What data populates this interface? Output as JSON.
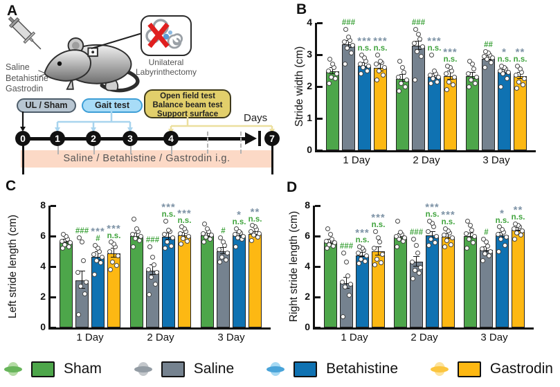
{
  "panelA": {
    "letter": "A",
    "drugs": "Saline\nBetahistine\nGastrodin",
    "inset_label": "Unilateral\nLabyrinthectomy",
    "box_ul": "UL / Sham",
    "box_gait": "Gait test",
    "box_tests": "Open field test\nBalance beam test\nSupport surface",
    "days": "Days",
    "ticks": [
      "0",
      "1",
      "2",
      "3",
      "4",
      "7"
    ],
    "band": "Saline / Betahistine / Gastrodin  i.g."
  },
  "legend": {
    "items": [
      {
        "label": "Sham",
        "color": "#4da64a",
        "light": "#b4dba4",
        "mid": "#68b55b"
      },
      {
        "label": "Saline",
        "color": "#75828f",
        "light": "#c3c7cb",
        "mid": "#939ca4"
      },
      {
        "label": "Betahistine",
        "color": "#0f72b2",
        "light": "#a6d9f3",
        "mid": "#4aa4d9"
      },
      {
        "label": "Gastrodin",
        "color": "#fdb813",
        "light": "#fde39c",
        "mid": "#fbc53e"
      }
    ]
  },
  "chart_data": [
    {
      "panel": "B",
      "type": "bar",
      "ylabel": "Stride width (cm)",
      "ymax": 4,
      "yticks": [
        0,
        1,
        2,
        3,
        4
      ],
      "categories": [
        "1 Day",
        "2 Day",
        "3 Day"
      ],
      "series": [
        "Sham",
        "Saline",
        "Betahistine",
        "Gastrodin"
      ],
      "groups": [
        {
          "bars": [
            {
              "value": 2.48,
              "err": 0.08,
              "points": [
                2.1,
                2.25,
                2.3,
                2.4,
                2.5,
                2.6,
                2.7,
                2.85
              ]
            },
            {
              "value": 3.32,
              "err": 0.1,
              "points": [
                2.7,
                3.05,
                3.2,
                3.3,
                3.4,
                3.45,
                3.55,
                3.8
              ],
              "sig_green": "###"
            },
            {
              "value": 2.65,
              "err": 0.07,
              "points": [
                2.4,
                2.5,
                2.6,
                2.65,
                2.7,
                2.8,
                2.9,
                3.0
              ],
              "sig_gray": "***",
              "sig_green": "n.s."
            },
            {
              "value": 2.58,
              "err": 0.1,
              "points": [
                2.2,
                2.35,
                2.5,
                2.6,
                2.7,
                2.75,
                2.8,
                3.0
              ],
              "sig_gray": "***",
              "sig_green": "n.s."
            }
          ]
        },
        {
          "bars": [
            {
              "value": 2.25,
              "err": 0.09,
              "points": [
                1.85,
                2.0,
                2.1,
                2.2,
                2.3,
                2.45,
                2.6,
                2.8
              ]
            },
            {
              "value": 3.28,
              "err": 0.12,
              "points": [
                2.2,
                2.95,
                3.1,
                3.25,
                3.35,
                3.5,
                3.65,
                3.8
              ],
              "sig_green": "###"
            },
            {
              "value": 2.3,
              "err": 0.06,
              "points": [
                2.1,
                2.15,
                2.25,
                2.3,
                2.35,
                2.4,
                2.5,
                3.0
              ],
              "sig_gray": "***",
              "sig_green": "n.s."
            },
            {
              "value": 2.33,
              "err": 0.12,
              "points": [
                1.9,
                2.05,
                2.15,
                2.3,
                2.4,
                2.5,
                2.6,
                2.65
              ],
              "sig_gray": "***",
              "sig_green": "n.s."
            }
          ]
        },
        {
          "bars": [
            {
              "value": 2.33,
              "err": 0.09,
              "points": [
                2.0,
                2.1,
                2.2,
                2.3,
                2.4,
                2.55,
                2.7,
                2.8
              ]
            },
            {
              "value": 2.88,
              "err": 0.06,
              "points": [
                2.6,
                2.75,
                2.85,
                2.9,
                2.95,
                3.0,
                3.05,
                3.1
              ],
              "sig_green": "##"
            },
            {
              "value": 2.45,
              "err": 0.06,
              "points": [
                2.0,
                2.25,
                2.4,
                2.45,
                2.5,
                2.55,
                2.6,
                2.65
              ],
              "sig_gray": "*",
              "sig_green": "n.s."
            },
            {
              "value": 2.32,
              "err": 0.09,
              "points": [
                1.95,
                2.05,
                2.15,
                2.25,
                2.35,
                2.45,
                2.55,
                2.65
              ],
              "sig_gray": "**",
              "sig_green": "n.s."
            }
          ]
        }
      ]
    },
    {
      "panel": "C",
      "type": "bar",
      "ylabel": "Left stride length (cm)",
      "ymax": 8,
      "yticks": [
        0,
        2,
        4,
        6,
        8
      ],
      "categories": [
        "1 Day",
        "2 Day",
        "3 Day"
      ],
      "series": [
        "Sham",
        "Saline",
        "Betahistine",
        "Gastrodin"
      ],
      "groups": [
        {
          "bars": [
            {
              "value": 5.62,
              "err": 0.12,
              "points": [
                5.2,
                5.3,
                5.45,
                5.55,
                5.65,
                5.8,
                6.0,
                6.1
              ]
            },
            {
              "value": 3.1,
              "err": 0.55,
              "points": [
                0.85,
                2.2,
                2.7,
                3.0,
                3.6,
                4.4,
                5.6,
                5.9
              ],
              "sig_green": "###"
            },
            {
              "value": 4.65,
              "err": 0.25,
              "points": [
                3.5,
                4.25,
                4.4,
                4.6,
                4.8,
                5.0,
                5.2,
                5.4
              ],
              "sig_gray": "***",
              "sig_green": "#"
            },
            {
              "value": 4.85,
              "err": 0.28,
              "points": [
                3.8,
                4.05,
                4.3,
                4.7,
                5.0,
                5.3,
                5.5,
                5.6
              ],
              "sig_gray": "***",
              "sig_green": "n.s."
            }
          ]
        },
        {
          "bars": [
            {
              "value": 6.0,
              "err": 0.15,
              "points": [
                5.3,
                5.7,
                5.85,
                6.0,
                6.1,
                6.3,
                6.5,
                7.1
              ]
            },
            {
              "value": 3.75,
              "err": 0.3,
              "points": [
                2.15,
                2.85,
                3.3,
                3.6,
                3.8,
                4.1,
                4.6,
                5.3
              ],
              "sig_green": "###"
            },
            {
              "value": 5.95,
              "err": 0.18,
              "points": [
                5.2,
                5.35,
                5.6,
                5.9,
                6.1,
                6.3,
                6.4,
                7.0
              ],
              "sig_gray": "***",
              "sig_green": "n.s."
            },
            {
              "value": 6.05,
              "err": 0.15,
              "points": [
                5.5,
                5.65,
                5.85,
                6.0,
                6.15,
                6.3,
                6.5,
                6.6
              ],
              "sig_gray": "***",
              "sig_green": "n.s."
            }
          ]
        },
        {
          "bars": [
            {
              "value": 6.05,
              "err": 0.1,
              "points": [
                5.6,
                5.8,
                5.95,
                6.05,
                6.15,
                6.3,
                6.5,
                6.8
              ]
            },
            {
              "value": 5.0,
              "err": 0.2,
              "points": [
                4.3,
                4.45,
                4.6,
                4.9,
                5.1,
                5.4,
                5.6,
                5.9
              ],
              "sig_green": "#"
            },
            {
              "value": 6.05,
              "err": 0.12,
              "points": [
                5.3,
                5.8,
                5.9,
                6.0,
                6.1,
                6.2,
                6.3,
                6.5
              ],
              "sig_gray": "*",
              "sig_green": "n.s."
            },
            {
              "value": 6.15,
              "err": 0.1,
              "points": [
                5.7,
                5.95,
                6.05,
                6.15,
                6.3,
                6.45,
                6.6,
                6.7
              ],
              "sig_gray": "**",
              "sig_green": "n.s."
            }
          ]
        }
      ]
    },
    {
      "panel": "D",
      "type": "bar",
      "ylabel": "Right stride length (cm)",
      "ymax": 8,
      "yticks": [
        0,
        2,
        4,
        6,
        8
      ],
      "categories": [
        "1 Day",
        "2 Day",
        "3 Day"
      ],
      "series": [
        "Sham",
        "Saline",
        "Betahistine",
        "Gastrodin"
      ],
      "groups": [
        {
          "bars": [
            {
              "value": 5.6,
              "err": 0.12,
              "points": [
                5.2,
                5.35,
                5.45,
                5.55,
                5.65,
                5.8,
                6.1,
                6.5
              ]
            },
            {
              "value": 2.9,
              "err": 0.35,
              "points": [
                0.7,
                2.1,
                2.65,
                2.85,
                3.0,
                3.4,
                4.3,
                4.9
              ],
              "sig_green": "###"
            },
            {
              "value": 4.75,
              "err": 0.12,
              "points": [
                4.2,
                4.35,
                4.5,
                4.7,
                4.9,
                5.05,
                5.2,
                5.3
              ],
              "sig_gray": "***",
              "sig_green": "n.s."
            },
            {
              "value": 5.0,
              "err": 0.25,
              "points": [
                4.1,
                4.25,
                4.5,
                4.8,
                5.2,
                5.6,
                5.9,
                6.3
              ],
              "sig_gray": "***",
              "sig_green": "n.s."
            }
          ]
        },
        {
          "bars": [
            {
              "value": 5.95,
              "err": 0.12,
              "points": [
                5.3,
                5.65,
                5.8,
                5.9,
                6.0,
                6.1,
                6.25,
                7.0
              ]
            },
            {
              "value": 4.3,
              "err": 0.3,
              "points": [
                3.2,
                3.55,
                3.75,
                3.95,
                4.3,
                4.9,
                5.4,
                5.8
              ],
              "sig_green": "###"
            },
            {
              "value": 6.05,
              "err": 0.18,
              "points": [
                5.4,
                5.55,
                5.8,
                6.0,
                6.3,
                6.6,
                6.85,
                7.0
              ],
              "sig_gray": "***",
              "sig_green": "n.s."
            },
            {
              "value": 5.95,
              "err": 0.12,
              "points": [
                5.3,
                5.45,
                5.7,
                5.9,
                6.05,
                6.2,
                6.35,
                6.5
              ],
              "sig_gray": "***",
              "sig_green": "n.s."
            }
          ]
        },
        {
          "bars": [
            {
              "value": 6.0,
              "err": 0.15,
              "points": [
                5.2,
                5.55,
                5.8,
                6.0,
                6.15,
                6.4,
                6.7,
                7.0
              ]
            },
            {
              "value": 5.1,
              "err": 0.15,
              "points": [
                4.4,
                4.7,
                4.85,
                5.0,
                5.15,
                5.35,
                5.6,
                5.8
              ],
              "sig_green": "#"
            },
            {
              "value": 6.05,
              "err": 0.15,
              "points": [
                5.0,
                5.4,
                5.8,
                5.95,
                6.1,
                6.25,
                6.45,
                6.6
              ],
              "sig_gray": "*",
              "sig_green": "n.s."
            },
            {
              "value": 6.4,
              "err": 0.1,
              "points": [
                5.8,
                6.05,
                6.2,
                6.35,
                6.5,
                6.6,
                6.7,
                6.8
              ],
              "sig_gray": "**",
              "sig_green": "n.s."
            }
          ]
        }
      ]
    }
  ]
}
